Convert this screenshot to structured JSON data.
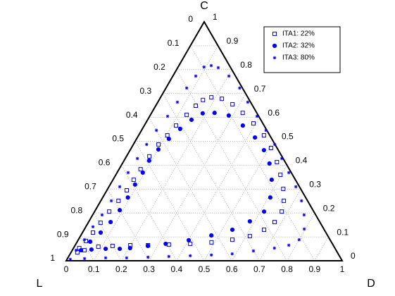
{
  "chart_data": {
    "type": "ternary",
    "labels": {
      "c": "C",
      "l": "L",
      "d": "D"
    },
    "ticks": [
      0,
      0.1,
      0.2,
      0.3,
      0.4,
      0.5,
      0.6,
      0.7,
      0.8,
      0.9,
      1
    ],
    "grid": true,
    "legend": "upper right",
    "series": [
      {
        "name": "ITA1: 22%",
        "color": "#0000ff",
        "marker": "square",
        "c": [
          0.035,
          0.044,
          0.059,
          0.062,
          0.065,
          0.065,
          0.068,
          0.071,
          0.077,
          0.088,
          0.103,
          0.13,
          0.162,
          0.206,
          0.251,
          0.301,
          0.36,
          0.413,
          0.472,
          0.525,
          0.575,
          0.619,
          0.655,
          0.678,
          0.684,
          0.673,
          0.649,
          0.611,
          0.566,
          0.525,
          0.487,
          0.437,
          0.383,
          0.339,
          0.295,
          0.251,
          0.206,
          0.159,
          0.118,
          0.083,
          0.053
        ],
        "d": [
          0.023,
          0.044,
          0.087,
          0.137,
          0.2,
          0.264,
          0.338,
          0.414,
          0.488,
          0.558,
          0.614,
          0.652,
          0.674,
          0.678,
          0.663,
          0.636,
          0.596,
          0.557,
          0.506,
          0.454,
          0.391,
          0.33,
          0.275,
          0.225,
          0.184,
          0.159,
          0.145,
          0.131,
          0.115,
          0.104,
          0.091,
          0.083,
          0.078,
          0.075,
          0.072,
          0.064,
          0.053,
          0.045,
          0.038,
          0.03,
          0.021
        ]
      },
      {
        "name": "ITA2: 32%",
        "color": "#0000ff",
        "marker": "circle",
        "c": [
          0.044,
          0.047,
          0.05,
          0.05,
          0.053,
          0.062,
          0.071,
          0.086,
          0.106,
          0.13,
          0.165,
          0.206,
          0.265,
          0.339,
          0.407,
          0.463,
          0.516,
          0.566,
          0.608,
          0.619,
          0.617,
          0.59,
          0.552,
          0.51,
          0.466,
          0.419,
          0.369,
          0.319,
          0.265,
          0.212,
          0.162,
          0.118,
          0.08
        ],
        "d": [
          0.032,
          0.068,
          0.118,
          0.169,
          0.205,
          0.265,
          0.325,
          0.401,
          0.473,
          0.537,
          0.583,
          0.614,
          0.607,
          0.575,
          0.533,
          0.485,
          0.426,
          0.357,
          0.285,
          0.228,
          0.186,
          0.159,
          0.137,
          0.117,
          0.101,
          0.091,
          0.093,
          0.09,
          0.091,
          0.088,
          0.08,
          0.066,
          0.047
        ]
      },
      {
        "name": "ITA3: 80%",
        "color": "#0000ff",
        "marker": "star",
        "c": [
          0.006,
          0.009,
          0.012,
          0.012,
          0.015,
          0.018,
          0.021,
          0.024,
          0.029,
          0.041,
          0.053,
          0.065,
          0.088,
          0.133,
          0.192,
          0.251,
          0.31,
          0.369,
          0.428,
          0.487,
          0.546,
          0.605,
          0.664,
          0.723,
          0.773,
          0.808,
          0.817,
          0.811,
          0.773,
          0.723,
          0.664,
          0.605,
          0.546,
          0.487,
          0.428,
          0.369,
          0.31,
          0.251,
          0.192,
          0.142,
          0.088,
          0.044
        ],
        "d": [
          0.012,
          0.062,
          0.137,
          0.213,
          0.289,
          0.363,
          0.439,
          0.514,
          0.587,
          0.658,
          0.728,
          0.774,
          0.8,
          0.796,
          0.766,
          0.727,
          0.677,
          0.622,
          0.567,
          0.512,
          0.451,
          0.389,
          0.326,
          0.267,
          0.203,
          0.147,
          0.117,
          0.094,
          0.083,
          0.075,
          0.071,
          0.065,
          0.054,
          0.048,
          0.044,
          0.04,
          0.039,
          0.038,
          0.034,
          0.026,
          0.022,
          0.014
        ]
      }
    ]
  }
}
